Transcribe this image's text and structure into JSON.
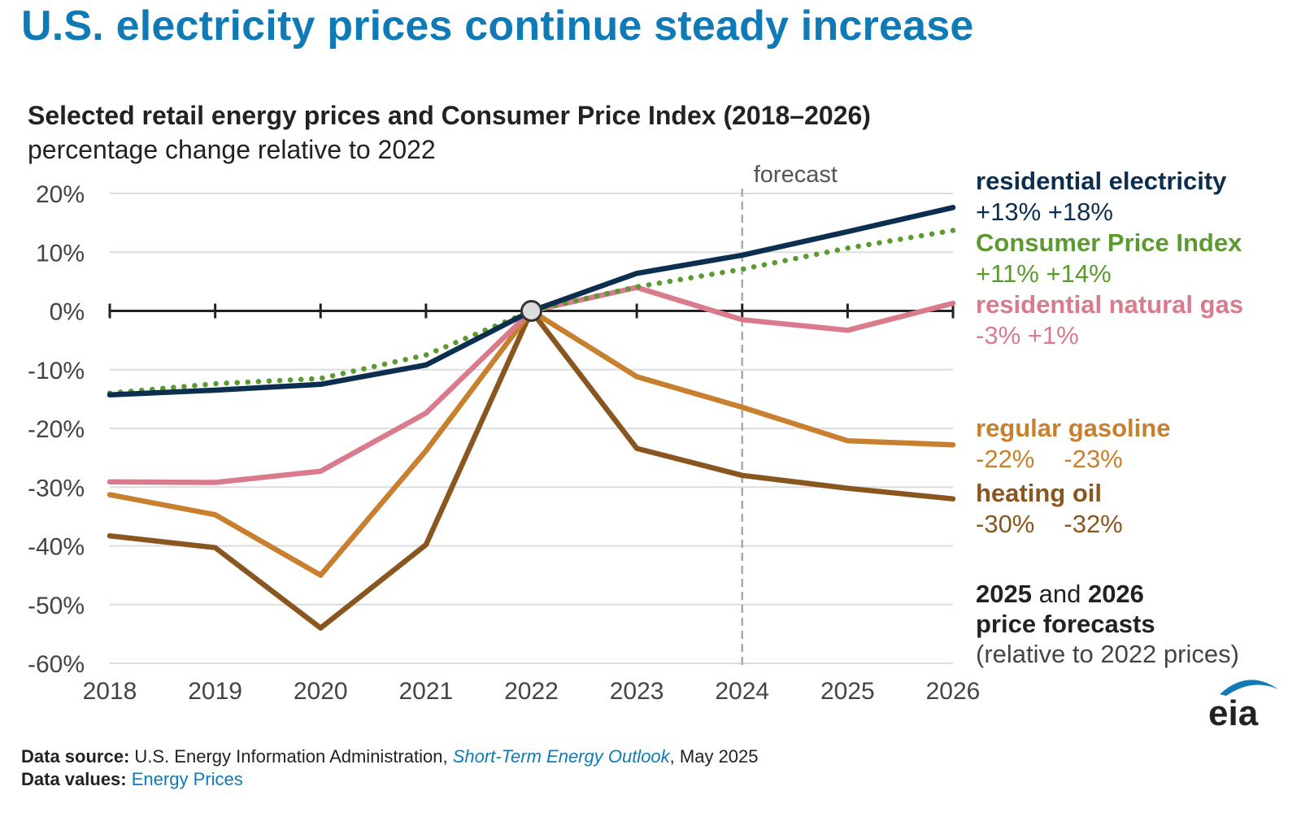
{
  "headline": "U.S. electricity prices continue steady increase",
  "colors": {
    "brand_blue": "#0f7ab5",
    "residential_electricity": "#0d2f4f",
    "consumer_price_index": "#5a9a30",
    "residential_natural_gas": "#d97b8c",
    "regular_gasoline": "#c9802e",
    "heating_oil": "#8a5620",
    "axis": "#222222",
    "grid": "#dddddd"
  },
  "chart_data": {
    "type": "line",
    "title": "Selected retail energy prices and Consumer Price Index (2018–2026)",
    "subtitle": "percentage change relative to 2022",
    "x": [
      "2018",
      "2019",
      "2020",
      "2021",
      "2022",
      "2023",
      "2024",
      "2025",
      "2026"
    ],
    "ylim": [
      -60,
      20
    ],
    "yticks": [
      "20%",
      "10%",
      "0%",
      "-10%",
      "-20%",
      "-30%",
      "-40%",
      "-50%",
      "-60%"
    ],
    "ytick_values": [
      20,
      10,
      0,
      -10,
      -20,
      -30,
      -40,
      -50,
      -60
    ],
    "grid": true,
    "forecast_start": "2024",
    "forecast_label": "forecast",
    "series": [
      {
        "name": "residential electricity",
        "color": "#0d2f4f",
        "dashed": false,
        "values": [
          -14.3,
          -13.5,
          -12.5,
          -9.2,
          0,
          6.4,
          9.5,
          13.5,
          17.6
        ]
      },
      {
        "name": "Consumer Price Index",
        "color": "#5a9a30",
        "dashed": true,
        "values": [
          -14.0,
          -12.4,
          -11.5,
          -7.5,
          0,
          4.1,
          7.1,
          10.7,
          13.7
        ]
      },
      {
        "name": "residential natural gas",
        "color": "#d97b8c",
        "dashed": false,
        "values": [
          -29.1,
          -29.2,
          -27.3,
          -17.4,
          0,
          4.0,
          -1.5,
          -3.3,
          1.3
        ]
      },
      {
        "name": "regular gasoline",
        "color": "#c9802e",
        "dashed": false,
        "values": [
          -31.3,
          -34.7,
          -45.0,
          -23.8,
          0,
          -11.2,
          -16.4,
          -22.1,
          -22.8
        ]
      },
      {
        "name": "heating oil",
        "color": "#8a5620",
        "dashed": false,
        "values": [
          -38.3,
          -40.3,
          -54.0,
          -39.8,
          0,
          -23.4,
          -28.0,
          -30.2,
          -32.0
        ]
      }
    ]
  },
  "legend": [
    {
      "name": "residential electricity",
      "v2025": "+13%",
      "v2026": "+18%"
    },
    {
      "name": "Consumer Price Index",
      "v2025": "+11%",
      "v2026": "+14%"
    },
    {
      "name": "residential natural gas",
      "v2025": "-3%",
      "v2026": "+1%"
    },
    {
      "name": "regular gasoline",
      "v2025": "-22%",
      "v2026": "-23%"
    },
    {
      "name": "heating oil",
      "v2025": "-30%",
      "v2026": "-32%"
    }
  ],
  "note": {
    "year1": "2025",
    "and": "and",
    "year2": "2026",
    "line2": "price forecasts",
    "line3": "(relative to 2022 prices)"
  },
  "footer": {
    "source_label": "Data source:",
    "source_text": "U.S. Energy Information Administration,",
    "source_link": "Short-Term Energy Outlook",
    "source_date": ", May 2025",
    "values_label": "Data values:",
    "values_link": "Energy Prices"
  },
  "logo_text": "eia"
}
